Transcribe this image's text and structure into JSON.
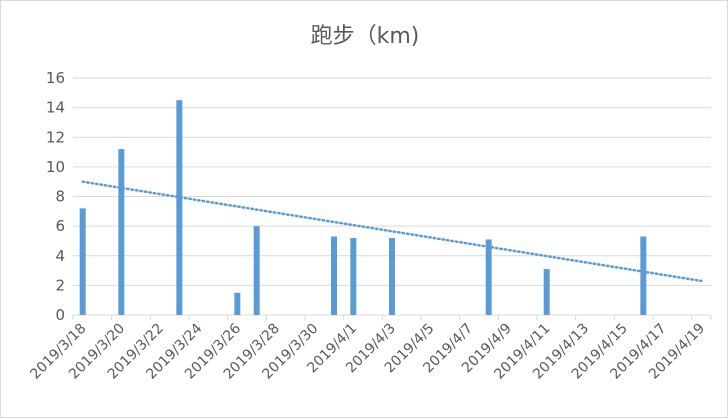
{
  "chart_data": {
    "type": "bar",
    "title": "跑步（km)",
    "xlabel": "",
    "ylabel": "",
    "ylim": [
      0,
      16
    ],
    "yticks": [
      "0",
      "2",
      "4",
      "6",
      "8",
      "10",
      "12",
      "14",
      "16"
    ],
    "xticks": [
      "2019/3/18",
      "2019/3/20",
      "2019/3/22",
      "2019/3/24",
      "2019/3/26",
      "2019/3/28",
      "2019/3/30",
      "2019/4/1",
      "2019/4/3",
      "2019/4/5",
      "2019/4/7",
      "2019/4/9",
      "2019/4/11",
      "2019/4/13",
      "2019/4/15",
      "2019/4/17",
      "2019/4/19"
    ],
    "xrange": [
      "2019/3/18",
      "2019/4/19"
    ],
    "bars": [
      {
        "date": "2019/3/18",
        "value": 7.2
      },
      {
        "date": "2019/3/20",
        "value": 11.2
      },
      {
        "date": "2019/3/23",
        "value": 14.5
      },
      {
        "date": "2019/3/26",
        "value": 1.5
      },
      {
        "date": "2019/3/27",
        "value": 6.0
      },
      {
        "date": "2019/3/31",
        "value": 5.3
      },
      {
        "date": "2019/4/1",
        "value": 5.2
      },
      {
        "date": "2019/4/3",
        "value": 5.2
      },
      {
        "date": "2019/4/8",
        "value": 5.1
      },
      {
        "date": "2019/4/11",
        "value": 3.1
      },
      {
        "date": "2019/4/16",
        "value": 5.3
      }
    ],
    "trendline": {
      "style": "dotted",
      "start": {
        "date": "2019/3/18",
        "value": 9.0
      },
      "end": {
        "date": "2019/4/19",
        "value": 2.3
      }
    },
    "grid": true,
    "legend": "none",
    "colors": {
      "bar": "#5b9bd5",
      "trend": "#5b9bd5",
      "grid": "#d9d9d9",
      "text": "#595959"
    }
  }
}
